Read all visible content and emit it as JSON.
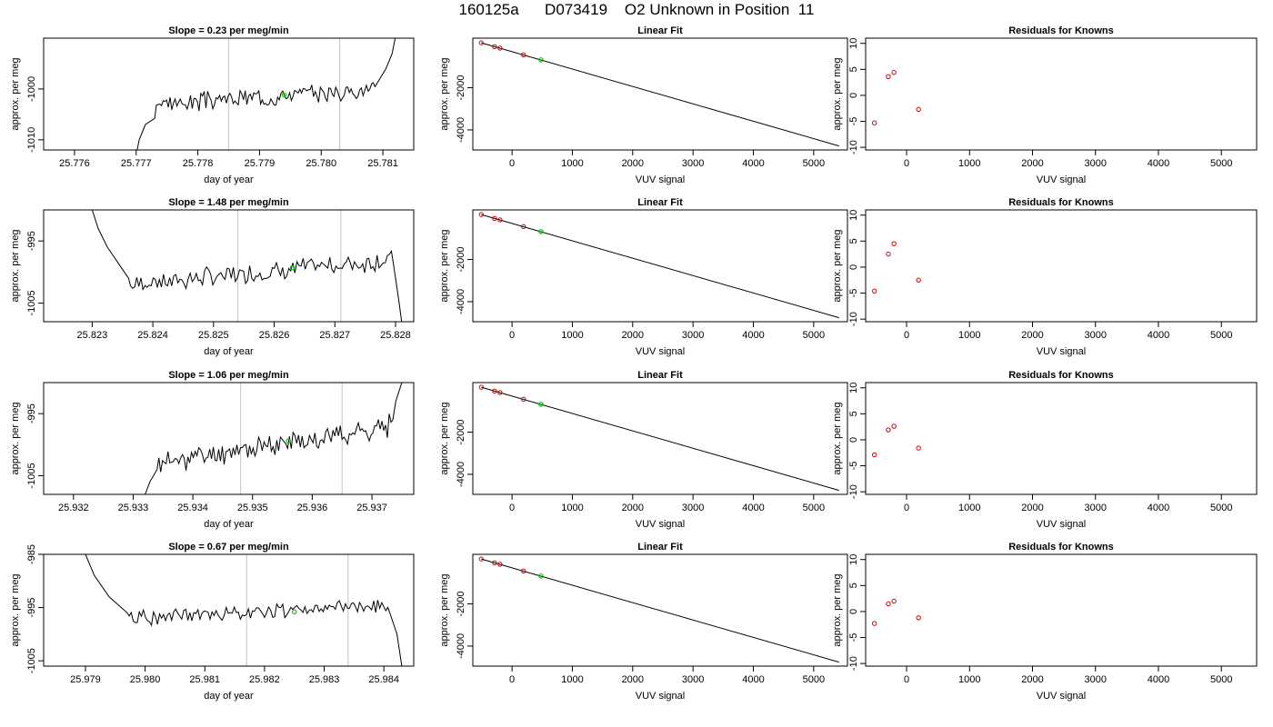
{
  "figure_title": "160125a      D073419    O2 Unknown in Position  11",
  "colors": {
    "trace": "#000000",
    "known_points": "#cc0000",
    "unknown_point": "#00cc00",
    "vertical_markers": "#cccccc",
    "frame": "#000000"
  },
  "chart_data": [
    {
      "panel": "row1-timeseries",
      "type": "line",
      "title": "Slope =  0.23  per meg/min",
      "xlabel": "day of year",
      "ylabel": "approx. per meg",
      "xlim": [
        25.7755,
        25.7815
      ],
      "ylim": [
        -1012,
        -990
      ],
      "xticks": [
        25.776,
        25.777,
        25.778,
        25.779,
        25.78,
        25.781
      ],
      "xtick_labels": [
        "25.776",
        "25.777",
        "25.778",
        "25.779",
        "25.780",
        "25.781"
      ],
      "yticks": [
        -1010,
        -1000
      ],
      "ytick_labels": [
        "-1010",
        "-1000"
      ],
      "vlines": [
        25.7785,
        25.7803
      ],
      "trace": {
        "x_start": 25.777,
        "x_end": 25.7812,
        "pre_ramp": [
          [
            25.777,
            -1013
          ],
          [
            25.77705,
            -1010
          ],
          [
            25.77715,
            -1007
          ],
          [
            25.7773,
            -1005.8
          ]
        ],
        "base_start": -1003,
        "base_end": -1000,
        "noise": 1.4,
        "post_ramp": [
          [
            25.7809,
            -999
          ],
          [
            25.78105,
            -996
          ],
          [
            25.78115,
            -993
          ],
          [
            25.7812,
            -990
          ]
        ],
        "seed": 3
      },
      "unknown_point": {
        "x": 25.7794,
        "y": -1001.2
      }
    },
    {
      "panel": "row1-linearfit",
      "type": "line",
      "title": "Linear Fit",
      "xlabel": "VUV signal",
      "ylabel": "approx. per meg",
      "xlim": [
        -650,
        5560
      ],
      "ylim": [
        -4950,
        350
      ],
      "xticks": [
        0,
        1000,
        2000,
        3000,
        4000,
        5000
      ],
      "xtick_labels": [
        "0",
        "1000",
        "2000",
        "3000",
        "4000",
        "5000"
      ],
      "yticks": [
        -4000,
        -2000
      ],
      "ytick_labels": [
        "-4000",
        "-2000"
      ],
      "fit_line": {
        "x": [
          -510,
          5420
        ],
        "y": [
          130,
          -4760
        ]
      },
      "known_points": {
        "x": [
          -510,
          -290,
          -200,
          190
        ],
        "y": [
          130,
          -50,
          -120,
          -440
        ]
      },
      "unknown_point": {
        "x": 480,
        "y": -680
      }
    },
    {
      "panel": "row1-residuals",
      "type": "scatter",
      "title": "Residuals for Knowns",
      "xlabel": "VUV signal",
      "ylabel": "approx. per meg",
      "xlim": [
        -650,
        5560
      ],
      "ylim": [
        -10.5,
        11
      ],
      "xticks": [
        0,
        1000,
        2000,
        3000,
        4000,
        5000
      ],
      "xtick_labels": [
        "0",
        "1000",
        "2000",
        "3000",
        "4000",
        "5000"
      ],
      "yticks": [
        -10,
        -5,
        0,
        5,
        10
      ],
      "ytick_labels": [
        "-10",
        "-5",
        "0",
        "5",
        "10"
      ],
      "known_points": {
        "x": [
          -510,
          -290,
          -200,
          190
        ],
        "y": [
          -5.3,
          3.6,
          4.4,
          -2.7
        ]
      }
    },
    {
      "panel": "row2-timeseries",
      "type": "line",
      "title": "Slope =  1.48  per meg/min",
      "xlabel": "day of year",
      "ylabel": "approx. per meg",
      "xlim": [
        25.8222,
        25.8283
      ],
      "ylim": [
        -1008,
        -990
      ],
      "xticks": [
        25.823,
        25.824,
        25.825,
        25.826,
        25.827,
        25.828
      ],
      "xtick_labels": [
        "25.823",
        "25.824",
        "25.825",
        "25.826",
        "25.827",
        "25.828"
      ],
      "yticks": [
        -1005,
        -995
      ],
      "ytick_labels": [
        "-1005",
        "-995"
      ],
      "vlines": [
        25.8254,
        25.8271
      ],
      "trace": {
        "x_start": 25.823,
        "x_end": 25.8281,
        "pre_ramp": [
          [
            25.823,
            -990
          ],
          [
            25.8231,
            -993
          ],
          [
            25.82325,
            -996
          ],
          [
            25.8236,
            -1001
          ]
        ],
        "base_start": -1002,
        "base_end": -998,
        "noise": 1.2,
        "post_ramp": [
          [
            25.828,
            -1001
          ],
          [
            25.82806,
            -1005
          ],
          [
            25.8281,
            -1008
          ]
        ],
        "seed": 7
      },
      "unknown_point": {
        "x": 25.8263,
        "y": -999.3
      }
    },
    {
      "panel": "row2-linearfit",
      "type": "line",
      "title": "Linear Fit",
      "xlabel": "VUV signal",
      "ylabel": "approx. per meg",
      "xlim": [
        -650,
        5560
      ],
      "ylim": [
        -4950,
        350
      ],
      "xticks": [
        0,
        1000,
        2000,
        3000,
        4000,
        5000
      ],
      "xtick_labels": [
        "0",
        "1000",
        "2000",
        "3000",
        "4000",
        "5000"
      ],
      "yticks": [
        -4000,
        -2000
      ],
      "ytick_labels": [
        "-4000",
        "-2000"
      ],
      "fit_line": {
        "x": [
          -510,
          5420
        ],
        "y": [
          130,
          -4760
        ]
      },
      "known_points": {
        "x": [
          -510,
          -290,
          -200,
          190
        ],
        "y": [
          130,
          -50,
          -120,
          -440
        ]
      },
      "unknown_point": {
        "x": 480,
        "y": -680
      }
    },
    {
      "panel": "row2-residuals",
      "type": "scatter",
      "title": "Residuals for Knowns",
      "xlabel": "VUV signal",
      "ylabel": "approx. per meg",
      "xlim": [
        -650,
        5560
      ],
      "ylim": [
        -10.5,
        11
      ],
      "xticks": [
        0,
        1000,
        2000,
        3000,
        4000,
        5000
      ],
      "xtick_labels": [
        "0",
        "1000",
        "2000",
        "3000",
        "4000",
        "5000"
      ],
      "yticks": [
        -10,
        -5,
        0,
        5,
        10
      ],
      "ytick_labels": [
        "-10",
        "-5",
        "0",
        "5",
        "10"
      ],
      "known_points": {
        "x": [
          -510,
          -290,
          -200,
          190
        ],
        "y": [
          -4.6,
          2.5,
          4.5,
          -2.5
        ]
      }
    },
    {
      "panel": "row3-timeseries",
      "type": "line",
      "title": "Slope =  1.06  per meg/min",
      "xlabel": "day of year",
      "ylabel": "approx. per meg",
      "xlim": [
        25.9315,
        25.9377
      ],
      "ylim": [
        -1008,
        -990
      ],
      "xticks": [
        25.932,
        25.933,
        25.934,
        25.935,
        25.936,
        25.937
      ],
      "xtick_labels": [
        "25.932",
        "25.933",
        "25.934",
        "25.935",
        "25.936",
        "25.937"
      ],
      "yticks": [
        -1005,
        -995
      ],
      "ytick_labels": [
        "-1005",
        "-995"
      ],
      "vlines": [
        25.9348,
        25.9365
      ],
      "trace": {
        "x_start": 25.9332,
        "x_end": 25.9375,
        "pre_ramp": [
          [
            25.9332,
            -1008
          ],
          [
            25.93328,
            -1006
          ],
          [
            25.9334,
            -1004
          ]
        ],
        "base_start": -1003,
        "base_end": -997,
        "noise": 1.4,
        "post_ramp": [
          [
            25.93735,
            -996
          ],
          [
            25.9374,
            -993
          ],
          [
            25.9375,
            -990
          ]
        ],
        "seed": 11
      },
      "unknown_point": {
        "x": 25.9356,
        "y": -999.4
      }
    },
    {
      "panel": "row3-linearfit",
      "type": "line",
      "title": "Linear Fit",
      "xlabel": "VUV signal",
      "ylabel": "approx. per meg",
      "xlim": [
        -650,
        5560
      ],
      "ylim": [
        -4950,
        350
      ],
      "xticks": [
        0,
        1000,
        2000,
        3000,
        4000,
        5000
      ],
      "xtick_labels": [
        "0",
        "1000",
        "2000",
        "3000",
        "4000",
        "5000"
      ],
      "yticks": [
        -4000,
        -2000
      ],
      "ytick_labels": [
        "-4000",
        "-2000"
      ],
      "fit_line": {
        "x": [
          -510,
          5420
        ],
        "y": [
          130,
          -4760
        ]
      },
      "known_points": {
        "x": [
          -510,
          -290,
          -200,
          190
        ],
        "y": [
          130,
          -50,
          -120,
          -440
        ]
      },
      "unknown_point": {
        "x": 480,
        "y": -680
      }
    },
    {
      "panel": "row3-residuals",
      "type": "scatter",
      "title": "Residuals for Knowns",
      "xlabel": "VUV signal",
      "ylabel": "approx. per meg",
      "xlim": [
        -650,
        5560
      ],
      "ylim": [
        -10.5,
        11
      ],
      "xticks": [
        0,
        1000,
        2000,
        3000,
        4000,
        5000
      ],
      "xtick_labels": [
        "0",
        "1000",
        "2000",
        "3000",
        "4000",
        "5000"
      ],
      "yticks": [
        -10,
        -5,
        0,
        5,
        10
      ],
      "ytick_labels": [
        "-10",
        "-5",
        "0",
        "5",
        "10"
      ],
      "known_points": {
        "x": [
          -510,
          -290,
          -200,
          190
        ],
        "y": [
          -2.9,
          1.9,
          2.6,
          -1.6
        ]
      }
    },
    {
      "panel": "row4-timeseries",
      "type": "line",
      "title": "Slope =  0.67  per meg/min",
      "xlabel": "day of year",
      "ylabel": "approx. per meg",
      "xlim": [
        25.9783,
        25.9845
      ],
      "ylim": [
        -1006,
        -985
      ],
      "xticks": [
        25.979,
        25.98,
        25.981,
        25.982,
        25.983,
        25.984
      ],
      "xtick_labels": [
        "25.979",
        "25.980",
        "25.981",
        "25.982",
        "25.983",
        "25.984"
      ],
      "yticks": [
        -1005,
        -995,
        -985
      ],
      "ytick_labels": [
        "-1005",
        "-995",
        "-985"
      ],
      "vlines": [
        25.9817,
        25.9834
      ],
      "trace": {
        "x_start": 25.979,
        "x_end": 25.9843,
        "pre_ramp": [
          [
            25.979,
            -985
          ],
          [
            25.97915,
            -989
          ],
          [
            25.9794,
            -993
          ],
          [
            25.9797,
            -996
          ]
        ],
        "base_start": -997,
        "base_end": -994.5,
        "noise": 1.1,
        "post_ramp": [
          [
            25.9841,
            -996
          ],
          [
            25.98422,
            -1000
          ],
          [
            25.9843,
            -1006
          ]
        ],
        "seed": 19
      },
      "unknown_point": {
        "x": 25.9825,
        "y": -995.8
      }
    },
    {
      "panel": "row4-linearfit",
      "type": "line",
      "title": "Linear Fit",
      "xlabel": "VUV signal",
      "ylabel": "approx. per meg",
      "xlim": [
        -650,
        5560
      ],
      "ylim": [
        -4950,
        350
      ],
      "xticks": [
        0,
        1000,
        2000,
        3000,
        4000,
        5000
      ],
      "xtick_labels": [
        "0",
        "1000",
        "2000",
        "3000",
        "4000",
        "5000"
      ],
      "yticks": [
        -4000,
        -2000
      ],
      "ytick_labels": [
        "-4000",
        "-2000"
      ],
      "fit_line": {
        "x": [
          -510,
          5420
        ],
        "y": [
          130,
          -4760
        ]
      },
      "known_points": {
        "x": [
          -510,
          -290,
          -200,
          190
        ],
        "y": [
          130,
          -50,
          -120,
          -440
        ]
      },
      "unknown_point": {
        "x": 480,
        "y": -680
      }
    },
    {
      "panel": "row4-residuals",
      "type": "scatter",
      "title": "Residuals for Knowns",
      "xlabel": "VUV signal",
      "ylabel": "approx. per meg",
      "xlim": [
        -650,
        5560
      ],
      "ylim": [
        -10.5,
        11
      ],
      "xticks": [
        0,
        1000,
        2000,
        3000,
        4000,
        5000
      ],
      "xtick_labels": [
        "0",
        "1000",
        "2000",
        "3000",
        "4000",
        "5000"
      ],
      "yticks": [
        -10,
        -5,
        0,
        5,
        10
      ],
      "ytick_labels": [
        "-10",
        "-5",
        "0",
        "5",
        "10"
      ],
      "known_points": {
        "x": [
          -510,
          -290,
          -200,
          190
        ],
        "y": [
          -2.3,
          1.5,
          2.0,
          -1.2
        ]
      }
    }
  ]
}
